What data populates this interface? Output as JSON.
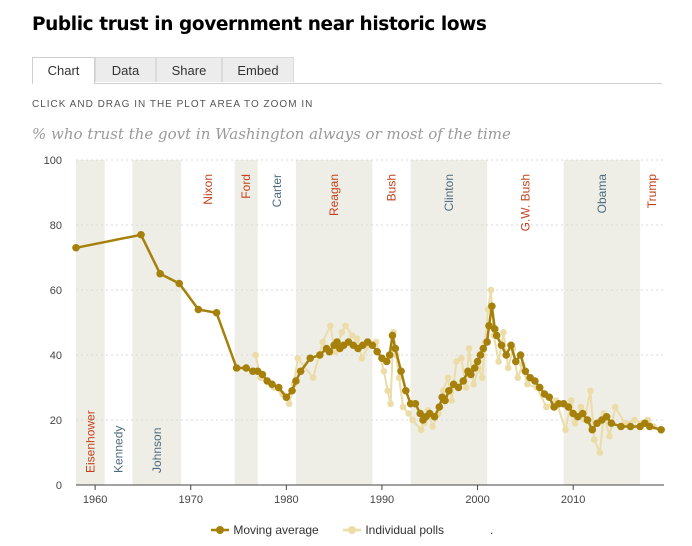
{
  "header": {
    "title": "Public trust in government near historic lows",
    "tabs": [
      {
        "label": "Chart",
        "active": true
      },
      {
        "label": "Data",
        "active": false
      },
      {
        "label": "Share",
        "active": false
      },
      {
        "label": "Embed",
        "active": false
      }
    ],
    "hint": "CLICK AND DRAG IN THE PLOT AREA TO ZOOM IN"
  },
  "colors": {
    "moving_average": "#a5810b",
    "individual_polls": "#ecdca7",
    "republican": "#c2421c",
    "democrat": "#4c6b80",
    "band": "#eeeee6",
    "grid": "#d9d9d9"
  },
  "chart_data": {
    "type": "line",
    "title": "% who trust the govt in Washington always or most of the time",
    "xlabel": "",
    "ylabel": "",
    "xlim": [
      1958,
      2019.5
    ],
    "ylim": [
      0,
      100
    ],
    "x_ticks": [
      1960,
      1970,
      1980,
      1990,
      2000,
      2010
    ],
    "y_ticks": [
      0,
      20,
      40,
      60,
      80,
      100
    ],
    "grid": "horizontal dashed",
    "legend_position": "bottom",
    "legend": [
      "Moving average",
      "Individual polls",
      "."
    ],
    "presidents": [
      {
        "name": "Eisenhower",
        "start": 1958,
        "end": 1961,
        "party": "R",
        "label_pos": "bottom"
      },
      {
        "name": "Kennedy",
        "start": 1961,
        "end": 1963.9,
        "party": "D",
        "label_pos": "bottom"
      },
      {
        "name": "Johnson",
        "start": 1963.9,
        "end": 1969,
        "party": "D",
        "label_pos": "bottom"
      },
      {
        "name": "Nixon",
        "start": 1969,
        "end": 1974.6,
        "party": "R",
        "label_pos": "top"
      },
      {
        "name": "Ford",
        "start": 1974.6,
        "end": 1977,
        "party": "R",
        "label_pos": "top"
      },
      {
        "name": "Carter",
        "start": 1977,
        "end": 1981,
        "party": "D",
        "label_pos": "top"
      },
      {
        "name": "Reagan",
        "start": 1981,
        "end": 1989,
        "party": "R",
        "label_pos": "top"
      },
      {
        "name": "Bush",
        "start": 1989,
        "end": 1993,
        "party": "R",
        "label_pos": "top"
      },
      {
        "name": "Clinton",
        "start": 1993,
        "end": 2001,
        "party": "D",
        "label_pos": "top"
      },
      {
        "name": "G.W. Bush",
        "start": 2001,
        "end": 2009,
        "party": "R",
        "label_pos": "top"
      },
      {
        "name": "Obama",
        "start": 2009,
        "end": 2017,
        "party": "D",
        "label_pos": "top"
      },
      {
        "name": "Trump",
        "start": 2017,
        "end": 2019.5,
        "party": "R",
        "label_pos": "top"
      }
    ],
    "series": [
      {
        "name": "Moving average",
        "x": [
          1958,
          1964.8,
          1966.8,
          1968.8,
          1970.8,
          1972.7,
          1974.8,
          1975.8,
          1976.5,
          1977,
          1977.5,
          1978,
          1978.5,
          1979.2,
          1980,
          1980.6,
          1981,
          1981.5,
          1982.5,
          1983.5,
          1984.2,
          1984.5,
          1985,
          1985.3,
          1985.6,
          1986,
          1986.5,
          1987,
          1987.5,
          1988,
          1988.5,
          1989,
          1989.5,
          1990,
          1990.5,
          1990.8,
          1991.1,
          1991.4,
          1992,
          1992.5,
          1993,
          1993.5,
          1994,
          1994.3,
          1994.6,
          1995,
          1995.5,
          1996,
          1996.3,
          1996.6,
          1997,
          1997.5,
          1998,
          1998.5,
          1999,
          1999.3,
          1999.7,
          2000,
          2000.3,
          2000.6,
          2001,
          2001.2,
          2001.5,
          2001.8,
          2002,
          2002.5,
          2003,
          2003.5,
          2004,
          2004.5,
          2005,
          2005.5,
          2006,
          2006.5,
          2007,
          2007.5,
          2008,
          2008.5,
          2009,
          2009.5,
          2010,
          2010.5,
          2011,
          2011.5,
          2012,
          2012.5,
          2013,
          2013.5,
          2014,
          2015,
          2016,
          2017,
          2017.5,
          2018,
          2019.2
        ],
        "values": [
          73,
          77,
          65,
          62,
          54,
          53,
          36,
          36,
          35,
          35,
          34,
          32,
          31,
          30,
          27,
          29,
          32,
          35,
          39,
          40,
          42,
          41,
          43,
          44,
          42,
          43,
          44,
          43,
          42,
          43,
          44,
          43,
          41,
          39,
          38,
          40,
          46,
          42,
          35,
          29,
          25,
          25,
          22,
          20,
          21,
          22,
          21,
          24,
          27,
          26,
          29,
          31,
          30,
          32,
          35,
          34,
          36,
          38,
          40,
          42,
          44,
          49,
          55,
          48,
          46,
          43,
          40,
          43,
          38,
          40,
          35,
          33,
          32,
          30,
          28,
          27,
          24,
          25,
          25,
          24,
          22,
          21,
          22,
          20,
          17,
          19,
          20,
          21,
          19,
          18,
          18,
          18,
          19,
          18,
          17
        ]
      },
      {
        "name": "Individual polls",
        "x": [
          1976.8,
          1977.3,
          1978.7,
          1979.6,
          1980.3,
          1980.8,
          1981.2,
          1982.8,
          1983.8,
          1984.6,
          1985.1,
          1985.8,
          1986.2,
          1986.9,
          1987.4,
          1987.9,
          1988.6,
          1989.4,
          1990.2,
          1990.6,
          1990.9,
          1991.2,
          1991.5,
          1991.8,
          1992.2,
          1992.8,
          1993.2,
          1994.1,
          1994.4,
          1994.8,
          1995.3,
          1995.9,
          1996.4,
          1996.9,
          1997.3,
          1997.8,
          1998.3,
          1998.8,
          1999.1,
          1999.6,
          2000.1,
          2000.5,
          2000.8,
          2001.1,
          2001.4,
          2001.7,
          2002.2,
          2002.7,
          2003.2,
          2003.7,
          2004.2,
          2004.7,
          2005.2,
          2006.2,
          2007.2,
          2008.2,
          2009.2,
          2009.8,
          2010.2,
          2010.8,
          2011.2,
          2011.8,
          2012.2,
          2012.8,
          2013.2,
          2013.8,
          2014.4,
          2015.4,
          2016.4,
          2017.2,
          2017.8,
          2018.4,
          2019.2
        ],
        "values": [
          40,
          33,
          30,
          28,
          25,
          31,
          39,
          33,
          44,
          49,
          41,
          47,
          49,
          46,
          45,
          39,
          43,
          44,
          35,
          29,
          25,
          47,
          40,
          33,
          24,
          22,
          20,
          17,
          19,
          23,
          18,
          22,
          29,
          33,
          26,
          38,
          39,
          30,
          42,
          31,
          36,
          33,
          44,
          54,
          60,
          46,
          38,
          47,
          36,
          42,
          33,
          37,
          31,
          30,
          24,
          26,
          17,
          26,
          19,
          24,
          20,
          29,
          14,
          10,
          22,
          15,
          24,
          19,
          20,
          19,
          20,
          18,
          17
        ]
      }
    ]
  }
}
